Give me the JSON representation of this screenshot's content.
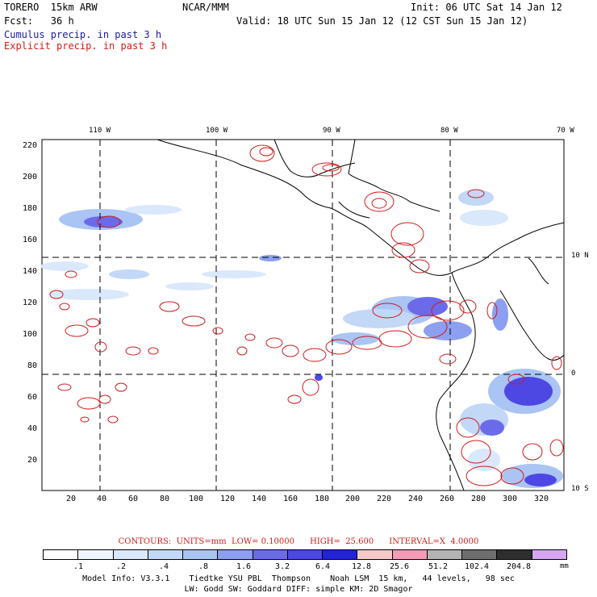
{
  "header": {
    "model_name": "TORERO  15km ARW",
    "org": "NCAR/MMM",
    "init": "Init: 06 UTC Sat 14 Jan 12",
    "fcst": "Fcst:   36 h",
    "valid": "Valid: 18 UTC Sun 15 Jan 12 (12 CST Sun 15 Jan 12)",
    "cumulus_label": "Cumulus precip. in past 3 h",
    "explicit_label": "Explicit precip. in past 3 h"
  },
  "map": {
    "top_longitudes": [
      "110 W",
      "100 W",
      "90 W",
      "80 W",
      "70 W"
    ],
    "right_latitudes": [
      "10 N",
      "0",
      "10 S"
    ],
    "y_ticks": [
      "220",
      "200",
      "180",
      "160",
      "140",
      "120",
      "100",
      "80",
      "60",
      "40",
      "20"
    ],
    "x_ticks": [
      "20",
      "40",
      "60",
      "80",
      "100",
      "120",
      "140",
      "160",
      "180",
      "200",
      "220",
      "240",
      "260",
      "280",
      "300",
      "320"
    ],
    "grid_x_values": [
      40,
      112,
      185,
      261
    ],
    "grid_y_values": [
      150,
      76
    ],
    "domain_x": [
      0,
      331
    ],
    "domain_y": [
      0,
      225
    ]
  },
  "legend": {
    "contours_text": "CONTOURS:  UNITS=mm  LOW= 0.10000      HIGH=  25.600      INTERVAL=X  4.0000",
    "colors": [
      "#ffffff",
      "#f0f6ff",
      "#dae8fb",
      "#c3d8f7",
      "#aac4f4",
      "#8d9ff0",
      "#6b6bea",
      "#4d48e4",
      "#2222d8",
      "#f6c9c9",
      "#f59ab7",
      "#b4b4b4",
      "#6e6e6e",
      "#2e2e2e",
      "#d6a6f2"
    ],
    "labels": [
      ".1",
      ".2",
      ".4",
      ".8",
      "1.6",
      "3.2",
      "6.4",
      "12.8",
      "25.6",
      "51.2",
      "102.4",
      "204.8"
    ],
    "units": "mm"
  },
  "footer": {
    "line1": "Model Info: V3.3.1    Tiedtke YSU PBL  Thompson    Noah LSM  15 km,   44 levels,   98 sec",
    "line2": "LW: Godd SW: Goddard DIFF: simple KM: 2D Smagor"
  }
}
